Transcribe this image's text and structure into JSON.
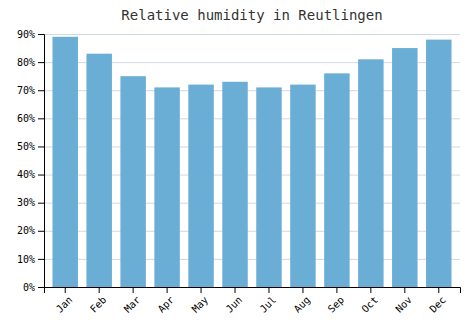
{
  "chart_data": {
    "type": "bar",
    "title": "Relative humidity in Reutlingen",
    "categories": [
      "Jan",
      "Feb",
      "Mar",
      "Apr",
      "May",
      "Jun",
      "Jul",
      "Aug",
      "Sep",
      "Oct",
      "Nov",
      "Dec"
    ],
    "values": [
      89,
      83,
      75,
      71,
      72,
      73,
      71,
      72,
      76,
      81,
      85,
      88
    ],
    "color": "#6aaed6",
    "ylim": [
      0,
      90
    ],
    "yticks": [
      {
        "value": 0,
        "label": "0%"
      },
      {
        "value": 10,
        "label": "10%"
      },
      {
        "value": 20,
        "label": "20%"
      },
      {
        "value": 30,
        "label": "30%"
      },
      {
        "value": 40,
        "label": "40%"
      },
      {
        "value": 50,
        "label": "50%"
      },
      {
        "value": 60,
        "label": "60%"
      },
      {
        "value": 70,
        "label": "70%"
      },
      {
        "value": 80,
        "label": "80%"
      },
      {
        "value": 90,
        "label": "90%"
      }
    ],
    "grid": true
  }
}
